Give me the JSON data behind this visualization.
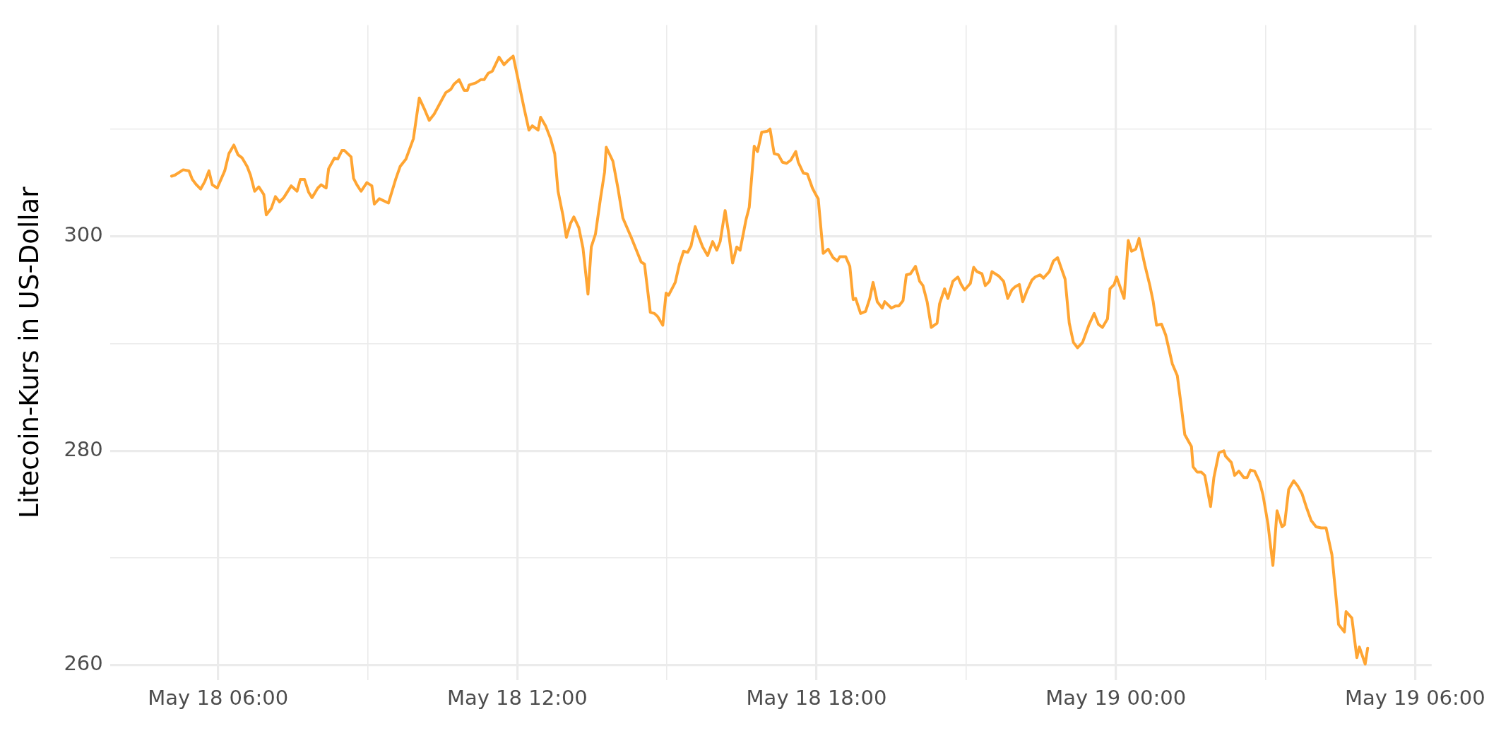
{
  "chart_data": {
    "type": "line",
    "ylabel": "Litecoin-Kurs in US-Dollar",
    "grid": true,
    "line_style": "solid",
    "marker": "none",
    "xlim": [
      "--05-18T03:50",
      "--05-19T06:20"
    ],
    "xticks": [
      {
        "value": "--05-18T06:00",
        "label": "May 18 06:00"
      },
      {
        "value": "--05-18T09:00",
        "label": null
      },
      {
        "value": "--05-18T12:00",
        "label": "May 18 12:00"
      },
      {
        "value": "--05-18T15:00",
        "label": null
      },
      {
        "value": "--05-18T18:00",
        "label": "May 18 18:00"
      },
      {
        "value": "--05-18T21:00",
        "label": null
      },
      {
        "value": "--05-19T00:00",
        "label": "May 19 00:00"
      },
      {
        "value": "--05-19T03:00",
        "label": null
      },
      {
        "value": "--05-19T06:00",
        "label": "May 19 06:00"
      }
    ],
    "ylim": [
      258.6,
      319.7
    ],
    "yticks": [
      260,
      {
        "value": 270,
        "label": null
      },
      280,
      {
        "value": 290,
        "label": null
      },
      300,
      {
        "value": 310,
        "label": null
      }
    ],
    "x": [
      "--05-18T05:04",
      "--05-18T05:08",
      "--05-18T05:18",
      "--05-18T05:25",
      "--05-18T05:29",
      "--05-18T05:34",
      "--05-18T05:39",
      "--05-18T05:44",
      "--05-18T05:49",
      "--05-18T05:53",
      "--05-18T05:59",
      "--05-18T06:08",
      "--05-18T06:13",
      "--05-18T06:19",
      "--05-18T06:24",
      "--05-18T06:29",
      "--05-18T06:35",
      "--05-18T06:39",
      "--05-18T06:44",
      "--05-18T06:49",
      "--05-18T06:55",
      "--05-18T06:58",
      "--05-18T07:04",
      "--05-18T07:09",
      "--05-18T07:14",
      "--05-18T07:19",
      "--05-18T07:28",
      "--05-18T07:35",
      "--05-18T07:39",
      "--05-18T07:44",
      "--05-18T07:49",
      "--05-18T07:53",
      "--05-18T08:00",
      "--05-18T08:04",
      "--05-18T08:10",
      "--05-18T08:13",
      "--05-18T08:20",
      "--05-18T08:24",
      "--05-18T08:29",
      "--05-18T08:32",
      "--05-18T08:40",
      "--05-18T08:43",
      "--05-18T08:47",
      "--05-18T08:52",
      "--05-18T08:59",
      "--05-18T09:05",
      "--05-18T09:08",
      "--05-18T09:14",
      "--05-18T09:25",
      "--05-18T09:34",
      "--05-18T09:39",
      "--05-18T09:46",
      "--05-18T09:55",
      "--05-18T10:02",
      "--05-18T10:08",
      "--05-18T10:14",
      "--05-18T10:20",
      "--05-18T10:29",
      "--05-18T10:34",
      "--05-18T10:40",
      "--05-18T10:44",
      "--05-18T10:50",
      "--05-18T10:56",
      "--05-18T11:00",
      "--05-18T11:02",
      "--05-18T11:10",
      "--05-18T11:16",
      "--05-18T11:20",
      "--05-18T11:25",
      "--05-18T11:30",
      "--05-18T11:38",
      "--05-18T11:44",
      "--05-18T11:49",
      "--05-18T11:55",
      "--05-18T12:01",
      "--05-18T12:08",
      "--05-18T12:14",
      "--05-18T12:18",
      "--05-18T12:25",
      "--05-18T12:28",
      "--05-18T12:34",
      "--05-18T12:40",
      "--05-18T12:45",
      "--05-18T12:49",
      "--05-18T12:55",
      "--05-18T12:59",
      "--05-18T13:04",
      "--05-18T13:08",
      "--05-18T13:14",
      "--05-18T13:19",
      "--05-18T13:25",
      "--05-18T13:29",
      "--05-18T13:34",
      "--05-18T13:40",
      "--05-18T13:45",
      "--05-18T13:47",
      "--05-18T13:55",
      "--05-18T14:01",
      "--05-18T14:07",
      "--05-18T14:17",
      "--05-18T14:29",
      "--05-18T14:33",
      "--05-18T14:40",
      "--05-18T14:45",
      "--05-18T14:49",
      "--05-18T14:55",
      "--05-18T14:59",
      "--05-18T15:02",
      "--05-18T15:10",
      "--05-18T15:15",
      "--05-18T15:20",
      "--05-18T15:25",
      "--05-18T15:29",
      "--05-18T15:34",
      "--05-18T15:38",
      "--05-18T15:43",
      "--05-18T15:49",
      "--05-18T15:55",
      "--05-18T16:00",
      "--05-18T16:04",
      "--05-18T16:10",
      "--05-18T16:14",
      "--05-18T16:19",
      "--05-18T16:24",
      "--05-18T16:28",
      "--05-18T16:35",
      "--05-18T16:39",
      "--05-18T16:45",
      "--05-18T16:49",
      "--05-18T16:54",
      "--05-18T17:01",
      "--05-18T17:04",
      "--05-18T17:09",
      "--05-18T17:14",
      "--05-18T17:19",
      "--05-18T17:24",
      "--05-18T17:29",
      "--05-18T17:35",
      "--05-18T17:38",
      "--05-18T17:44",
      "--05-18T17:49",
      "--05-18T17:55",
      "--05-18T17:59",
      "--05-18T18:02",
      "--05-18T18:08",
      "--05-18T18:14",
      "--05-18T18:20",
      "--05-18T18:25",
      "--05-18T18:28",
      "--05-18T18:35",
      "--05-18T18:40",
      "--05-18T18:44",
      "--05-18T18:47",
      "--05-18T18:53",
      "--05-18T18:59",
      "--05-18T19:04",
      "--05-18T19:08",
      "--05-18T19:13",
      "--05-18T19:19",
      "--05-18T19:22",
      "--05-18T19:30",
      "--05-18T19:35",
      "--05-18T19:39",
      "--05-18T19:44",
      "--05-18T19:48",
      "--05-18T19:53",
      "--05-18T19:59",
      "--05-18T20:04",
      "--05-18T20:08",
      "--05-18T20:13",
      "--05-18T20:18",
      "--05-18T20:25",
      "--05-18T20:28",
      "--05-18T20:34",
      "--05-18T20:38",
      "--05-18T20:44",
      "--05-18T20:50",
      "--05-18T20:54",
      "--05-18T20:58",
      "--05-18T21:05",
      "--05-18T21:09",
      "--05-18T21:13",
      "--05-18T21:19",
      "--05-18T21:23",
      "--05-18T21:28",
      "--05-18T21:31",
      "--05-18T21:39",
      "--05-18T21:45",
      "--05-18T21:50",
      "--05-18T21:55",
      "--05-18T21:59",
      "--05-18T22:04",
      "--05-18T22:08",
      "--05-18T22:13",
      "--05-18T22:19",
      "--05-18T22:23",
      "--05-18T22:29",
      "--05-18T22:33",
      "--05-18T22:40",
      "--05-18T22:45",
      "--05-18T22:50",
      "--05-18T22:59",
      "--05-18T23:04",
      "--05-18T23:09",
      "--05-18T23:14",
      "--05-18T23:20",
      "--05-18T23:28",
      "--05-18T23:34",
      "--05-18T23:39",
      "--05-18T23:44",
      "--05-18T23:50",
      "--05-18T23:53",
      "--05-18T23:58",
      "--05-19T00:01",
      "--05-19T00:10",
      "--05-19T00:15",
      "--05-19T00:19",
      "--05-19T00:24",
      "--05-19T00:28",
      "--05-19T00:35",
      "--05-19T00:41",
      "--05-19T00:45",
      "--05-19T00:49",
      "--05-19T00:55",
      "--05-19T01:00",
      "--05-19T01:08",
      "--05-19T01:14",
      "--05-19T01:19",
      "--05-19T01:23",
      "--05-19T01:31",
      "--05-19T01:33",
      "--05-19T01:38",
      "--05-19T01:43",
      "--05-19T01:47",
      "--05-19T01:54",
      "--05-19T01:58",
      "--05-19T02:04",
      "--05-19T02:10",
      "--05-19T02:12",
      "--05-19T02:19",
      "--05-19T02:23",
      "--05-19T02:28",
      "--05-19T02:34",
      "--05-19T02:38",
      "--05-19T02:42",
      "--05-19T02:47",
      "--05-19T02:53",
      "--05-19T02:57",
      "--05-19T03:03",
      "--05-19T03:09",
      "--05-19T03:14",
      "--05-19T03:20",
      "--05-19T03:23",
      "--05-19T03:28",
      "--05-19T03:34",
      "--05-19T03:39",
      "--05-19T03:44",
      "--05-19T03:49",
      "--05-19T03:55",
      "--05-19T04:01",
      "--05-19T04:07",
      "--05-19T04:13",
      "--05-19T04:20",
      "--05-19T04:28",
      "--05-19T04:35",
      "--05-19T04:37",
      "--05-19T04:44",
      "--05-19T04:50",
      "--05-19T04:53",
      "--05-19T05:00",
      "--05-19T05:03"
    ],
    "series": [
      {
        "color": "#ffa533",
        "values": [
          305.6,
          305.7,
          306.2,
          306.1,
          305.3,
          304.8,
          304.4,
          305.1,
          306.1,
          304.8,
          304.5,
          306.1,
          307.7,
          308.5,
          307.6,
          307.3,
          306.5,
          305.7,
          304.2,
          304.6,
          303.9,
          302.0,
          302.6,
          303.7,
          303.2,
          303.6,
          304.7,
          304.2,
          305.3,
          305.3,
          304.1,
          303.6,
          304.5,
          304.8,
          304.5,
          306.3,
          307.3,
          307.2,
          308.0,
          308.0,
          307.4,
          305.4,
          304.8,
          304.2,
          305.0,
          304.7,
          303.0,
          303.5,
          303.1,
          305.4,
          306.5,
          307.2,
          309.1,
          312.9,
          311.9,
          310.8,
          311.4,
          312.7,
          313.4,
          313.7,
          314.2,
          314.6,
          313.6,
          313.6,
          314.1,
          314.3,
          314.6,
          314.6,
          315.2,
          315.4,
          316.7,
          316.0,
          316.4,
          316.8,
          314.6,
          312.0,
          309.9,
          310.3,
          309.9,
          311.1,
          310.3,
          309.1,
          307.7,
          304.2,
          301.9,
          299.9,
          301.2,
          301.8,
          300.8,
          298.9,
          294.6,
          299.0,
          300.2,
          303.5,
          306.0,
          308.3,
          307.0,
          304.5,
          301.7,
          299.9,
          297.6,
          297.4,
          292.9,
          292.8,
          292.5,
          291.7,
          294.7,
          294.5,
          295.7,
          297.4,
          298.6,
          298.5,
          299.1,
          300.9,
          300.0,
          299.0,
          298.2,
          299.5,
          298.7,
          299.5,
          302.4,
          300.4,
          297.5,
          299.0,
          298.7,
          301.5,
          302.7,
          308.4,
          307.9,
          309.7,
          309.8,
          310.0,
          307.7,
          307.6,
          306.9,
          306.8,
          307.1,
          307.9,
          306.9,
          305.9,
          305.8,
          304.5,
          303.9,
          303.5,
          298.4,
          298.8,
          298.0,
          297.7,
          298.1,
          298.1,
          297.2,
          294.1,
          294.2,
          292.8,
          293.0,
          294.2,
          295.7,
          293.9,
          293.3,
          293.9,
          293.3,
          293.5,
          293.5,
          294.0,
          296.4,
          296.5,
          297.2,
          295.8,
          295.4,
          293.9,
          291.5,
          291.9,
          293.7,
          295.1,
          294.2,
          295.8,
          296.2,
          295.5,
          295.0,
          295.6,
          297.1,
          296.7,
          296.5,
          295.4,
          295.8,
          296.7,
          296.3,
          295.8,
          294.2,
          295.0,
          295.3,
          295.5,
          293.9,
          294.9,
          295.9,
          296.2,
          296.4,
          296.1,
          296.7,
          297.7,
          298.0,
          296.0,
          291.9,
          290.1,
          289.6,
          290.1,
          291.8,
          292.8,
          291.8,
          291.5,
          292.3,
          295.1,
          295.5,
          296.2,
          294.2,
          299.6,
          298.6,
          298.8,
          299.8,
          297.3,
          295.4,
          293.9,
          291.7,
          291.8,
          290.8,
          288.1,
          287.0,
          284.0,
          281.5,
          280.4,
          278.5,
          278.0,
          278.0,
          277.7,
          274.8,
          277.5,
          279.8,
          280.0,
          279.5,
          278.9,
          277.7,
          278.1,
          277.5,
          277.5,
          278.2,
          278.1,
          277.1,
          275.9,
          273.2,
          269.3,
          274.4,
          272.9,
          273.1,
          276.4,
          277.2,
          276.7,
          276.0,
          274.8,
          273.5,
          272.9,
          272.8,
          272.8,
          270.3,
          263.8,
          263.1,
          265.0,
          264.4,
          260.7,
          261.7,
          260.1,
          261.6
        ]
      }
    ]
  }
}
